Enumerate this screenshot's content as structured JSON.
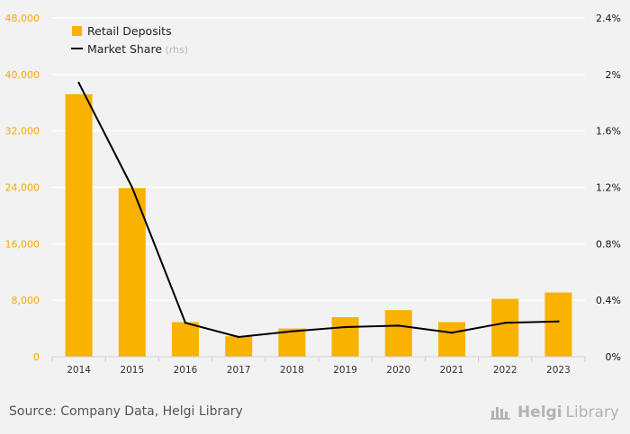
{
  "chart_data": {
    "type": "bar",
    "categories": [
      "2014",
      "2015",
      "2016",
      "2017",
      "2018",
      "2019",
      "2020",
      "2021",
      "2022",
      "2023"
    ],
    "series": [
      {
        "name": "Retail Deposits",
        "type": "bar",
        "axis": "left",
        "values": [
          37200,
          23900,
          4900,
          2900,
          4000,
          5600,
          6600,
          4900,
          8200,
          9100
        ]
      },
      {
        "name": "Market Share",
        "type": "line",
        "axis": "right",
        "label_suffix": " (rhs)",
        "values": [
          1.94,
          1.2,
          0.24,
          0.14,
          0.18,
          0.21,
          0.22,
          0.17,
          0.24,
          0.25
        ]
      }
    ],
    "y_left": {
      "min": 0,
      "max": 48000,
      "ticks": [
        "0",
        "8,000",
        "16,000",
        "24,000",
        "32,000",
        "40,000",
        "48,000"
      ],
      "color": "#f5a800"
    },
    "y_right": {
      "min": 0,
      "max": 2.4,
      "ticks": [
        "0%",
        "0.4%",
        "0.8%",
        "1.2%",
        "1.6%",
        "2%",
        "2.4%"
      ]
    },
    "legend_position": "top-left",
    "grid": true,
    "colors": {
      "bar": "#f9b200",
      "line": "#000000",
      "grid": "#ffffff",
      "background": "#f2f2f2"
    }
  },
  "footer": {
    "source": "Source: Company Data, Helgi Library",
    "brand_main": "Helgi",
    "brand_sub": "Library",
    "brand_icon": "helgi-library-icon"
  }
}
